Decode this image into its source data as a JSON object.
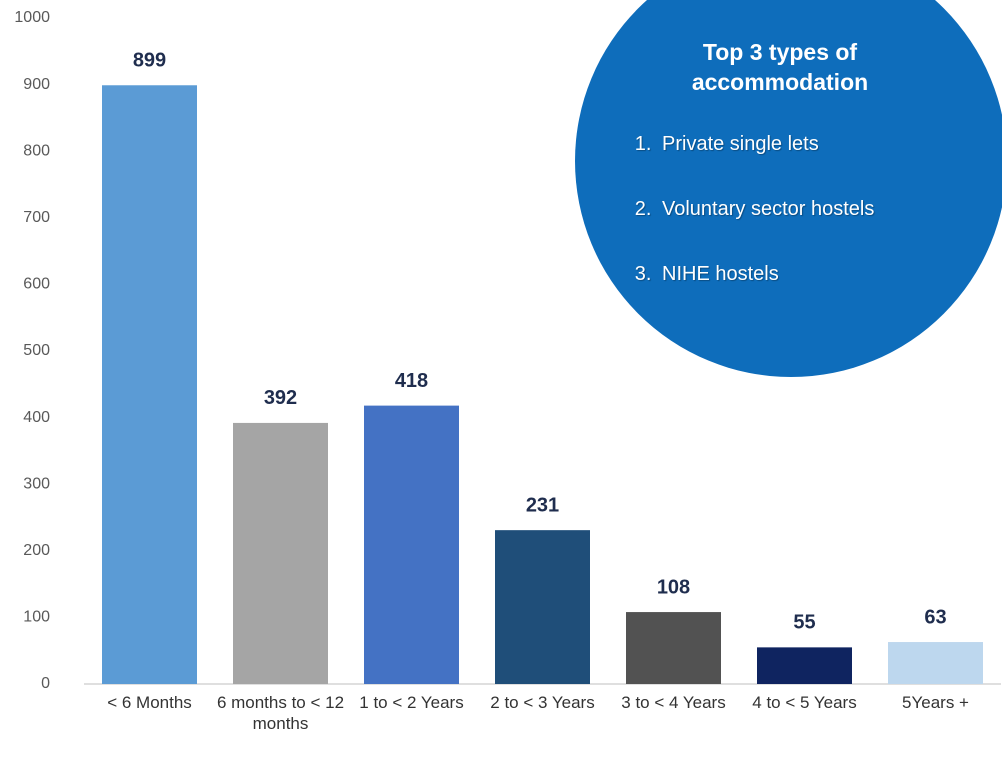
{
  "chart_data": {
    "type": "bar",
    "categories": [
      "< 6 Months",
      "6 months to < 12 months",
      "1 to < 2 Years",
      "2 to < 3 Years",
      "3 to < 4 Years",
      "4 to < 5 Years",
      "5Years +"
    ],
    "values": [
      899,
      392,
      418,
      231,
      108,
      55,
      63
    ],
    "colors": [
      "#5b9bd5",
      "#a5a5a5",
      "#4472c4",
      "#1f4e79",
      "#525252",
      "#0f2460",
      "#bdd7ee"
    ],
    "ylim": [
      0,
      1000
    ],
    "yticks": [
      0,
      100,
      200,
      300,
      400,
      500,
      600,
      700,
      800,
      900,
      1000
    ],
    "annotation": {
      "title": "Top 3 types of accommodation",
      "items": [
        "Private single lets",
        "Voluntary sector hostels",
        "NIHE hostels"
      ]
    }
  }
}
